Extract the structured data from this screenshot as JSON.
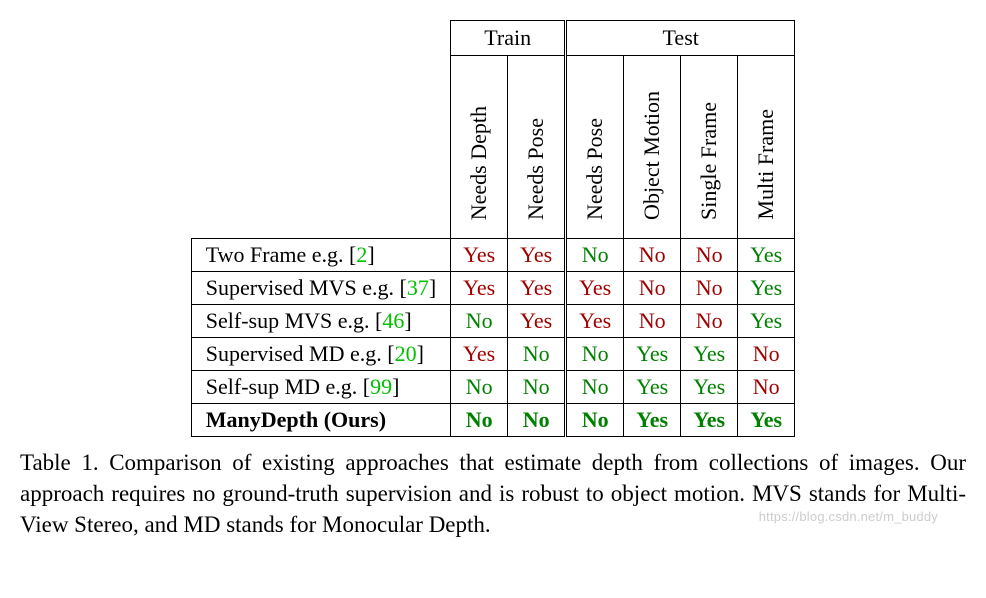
{
  "table": {
    "group_headers": {
      "train": "Train",
      "test": "Test"
    },
    "column_headers": {
      "needs_depth": "Needs Depth",
      "needs_pose_train": "Needs Pose",
      "needs_pose_test": "Needs Pose",
      "object_motion": "Object Motion",
      "single_frame": "Single Frame",
      "multi_frame": "Multi Frame"
    },
    "rows": [
      {
        "label_prefix": "Two Frame e.g. [",
        "cite": "2",
        "label_suffix": "]",
        "cells": [
          {
            "text": "Yes",
            "cls": "yes-r"
          },
          {
            "text": "Yes",
            "cls": "yes-r"
          },
          {
            "text": "No",
            "cls": "no-g"
          },
          {
            "text": "No",
            "cls": "no-r"
          },
          {
            "text": "No",
            "cls": "no-r"
          },
          {
            "text": "Yes",
            "cls": "yes-g"
          }
        ]
      },
      {
        "label_prefix": "Supervised MVS e.g. [",
        "cite": "37",
        "label_suffix": "]",
        "cells": [
          {
            "text": "Yes",
            "cls": "yes-r"
          },
          {
            "text": "Yes",
            "cls": "yes-r"
          },
          {
            "text": "Yes",
            "cls": "yes-r"
          },
          {
            "text": "No",
            "cls": "no-r"
          },
          {
            "text": "No",
            "cls": "no-r"
          },
          {
            "text": "Yes",
            "cls": "yes-g"
          }
        ]
      },
      {
        "label_prefix": "Self-sup MVS e.g. [",
        "cite": "46",
        "label_suffix": "]",
        "cells": [
          {
            "text": "No",
            "cls": "no-g"
          },
          {
            "text": "Yes",
            "cls": "yes-r"
          },
          {
            "text": "Yes",
            "cls": "yes-r"
          },
          {
            "text": "No",
            "cls": "no-r"
          },
          {
            "text": "No",
            "cls": "no-r"
          },
          {
            "text": "Yes",
            "cls": "yes-g"
          }
        ]
      },
      {
        "label_prefix": "Supervised MD e.g. [",
        "cite": "20",
        "label_suffix": "]",
        "cells": [
          {
            "text": "Yes",
            "cls": "yes-r"
          },
          {
            "text": "No",
            "cls": "no-g"
          },
          {
            "text": "No",
            "cls": "no-g"
          },
          {
            "text": "Yes",
            "cls": "yes-g"
          },
          {
            "text": "Yes",
            "cls": "yes-g"
          },
          {
            "text": "No",
            "cls": "no-r"
          }
        ]
      },
      {
        "label_prefix": "Self-sup MD e.g. [",
        "cite": "99",
        "label_suffix": "]",
        "cells": [
          {
            "text": "No",
            "cls": "no-g"
          },
          {
            "text": "No",
            "cls": "no-g"
          },
          {
            "text": "No",
            "cls": "no-g"
          },
          {
            "text": "Yes",
            "cls": "yes-g"
          },
          {
            "text": "Yes",
            "cls": "yes-g"
          },
          {
            "text": "No",
            "cls": "no-r"
          }
        ]
      }
    ],
    "ours": {
      "label": "ManyDepth (Ours)",
      "cells": [
        {
          "text": "No",
          "cls": "no-g"
        },
        {
          "text": "No",
          "cls": "no-g"
        },
        {
          "text": "No",
          "cls": "no-g"
        },
        {
          "text": "Yes",
          "cls": "yes-g"
        },
        {
          "text": "Yes",
          "cls": "yes-g"
        },
        {
          "text": "Yes",
          "cls": "yes-g"
        }
      ]
    }
  },
  "caption": "Table 1. Comparison of existing approaches that estimate depth from collections of images.  Our approach requires no ground-truth supervision and is robust to object motion. MVS stands for Multi-View Stereo, and MD stands for Monocular Depth.",
  "watermark": "https://blog.csdn.net/m_buddy",
  "colors": {
    "green": "#008000",
    "red": "#a00000",
    "cite_green": "#00c000",
    "border": "#000000",
    "background": "#ffffff"
  },
  "fonts": {
    "body_family": "Times New Roman",
    "body_size_pt": 16,
    "caption_size_pt": 17
  }
}
